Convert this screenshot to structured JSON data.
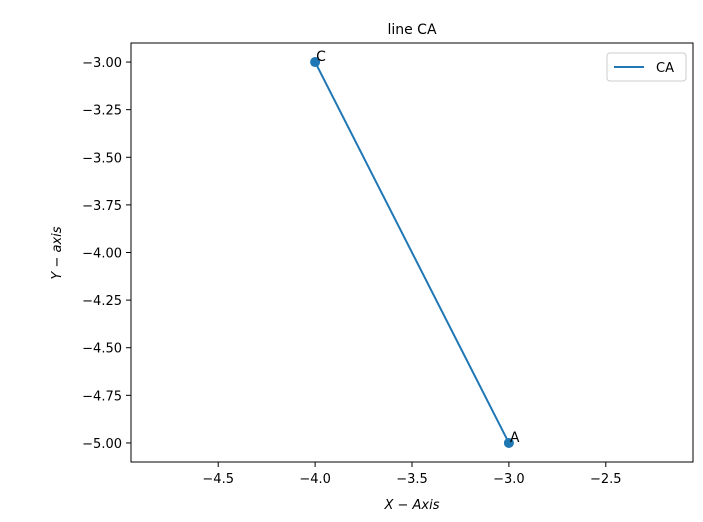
{
  "chart_data": {
    "type": "line",
    "title": "line CA",
    "xlabel": "X − Axis",
    "ylabel": "Y − axis",
    "xlim": [
      -4.95,
      -2.05
    ],
    "ylim": [
      -5.1,
      -2.9
    ],
    "xticks": [
      -4.5,
      -4.0,
      -3.5,
      -3.0,
      -2.5
    ],
    "xtick_labels": [
      "−4.5",
      "−4.0",
      "−3.5",
      "−3.0",
      "−2.5"
    ],
    "yticks": [
      -3.0,
      -3.25,
      -3.5,
      -3.75,
      -4.0,
      -4.25,
      -4.5,
      -4.75,
      -5.0
    ],
    "ytick_labels": [
      "−3.00",
      "−3.25",
      "−3.50",
      "−3.75",
      "−4.00",
      "−4.25",
      "−4.50",
      "−4.75",
      "−5.00"
    ],
    "grid": false,
    "legend_position": "top-right",
    "series": [
      {
        "name": "CA",
        "color": "#1f77b4",
        "points": [
          {
            "x": -4.0,
            "y": -3.0,
            "label": "C"
          },
          {
            "x": -3.0,
            "y": -5.0,
            "label": "A"
          }
        ]
      }
    ]
  }
}
